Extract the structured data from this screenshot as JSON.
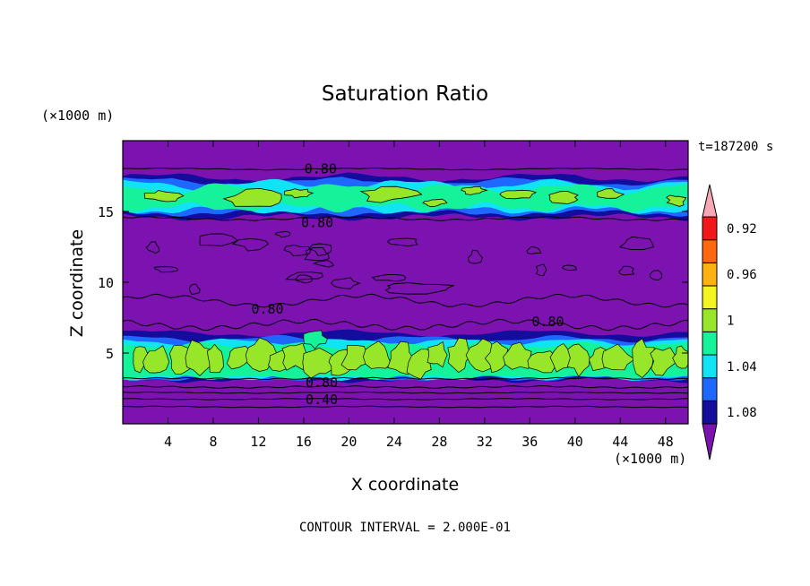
{
  "chart_data": {
    "type": "heatmap",
    "title": "Saturation Ratio",
    "xlabel": "X coordinate",
    "ylabel": "Z coordinate",
    "x_unit": "(×1000 m)",
    "y_unit": "(×1000 m)",
    "time_label": "t=187200 s",
    "footer": "CONTOUR INTERVAL = 2.000E-01",
    "xlim": [
      0,
      50
    ],
    "ylim": [
      0,
      20
    ],
    "x_ticks": [
      "4",
      "8",
      "12",
      "16",
      "20",
      "24",
      "28",
      "32",
      "36",
      "40",
      "44",
      "48"
    ],
    "y_ticks": [
      "5",
      "10",
      "15"
    ],
    "colorbar": {
      "labels": [
        "1.08",
        "1.04",
        "1",
        "0.96",
        "0.92"
      ],
      "levels": [
        {
          "value": "below 0.92",
          "color": "#7c12b0"
        },
        {
          "value": "0.92-0.94",
          "color": "#140c9c"
        },
        {
          "value": "0.94-0.96",
          "color": "#1f68ff"
        },
        {
          "value": "0.96-0.98",
          "color": "#10e4f4"
        },
        {
          "value": "0.98-1.00",
          "color": "#16f29a"
        },
        {
          "value": "1.00-1.02",
          "color": "#98e62a"
        },
        {
          "value": "1.02-1.04",
          "color": "#f4f420"
        },
        {
          "value": "1.04-1.06",
          "color": "#ffb012"
        },
        {
          "value": "1.06-1.08",
          "color": "#ff6810"
        },
        {
          "value": "1.08-1.10",
          "color": "#f01818"
        },
        {
          "value": "above 1.10",
          "color": "#f6a8b4"
        }
      ]
    },
    "contour_labels": [
      {
        "text": "0.80",
        "x": 17.5,
        "z": 18.0
      },
      {
        "text": "0.80",
        "x": 17.2,
        "z": 14.2
      },
      {
        "text": "0.80",
        "x": 12.8,
        "z": 8.1
      },
      {
        "text": "0.80",
        "x": 37.6,
        "z": 7.2
      },
      {
        "text": "0.80",
        "x": 17.6,
        "z": 2.9
      },
      {
        "text": "0.40",
        "x": 17.6,
        "z": 1.7
      }
    ],
    "background_color": "#7c12b0"
  }
}
